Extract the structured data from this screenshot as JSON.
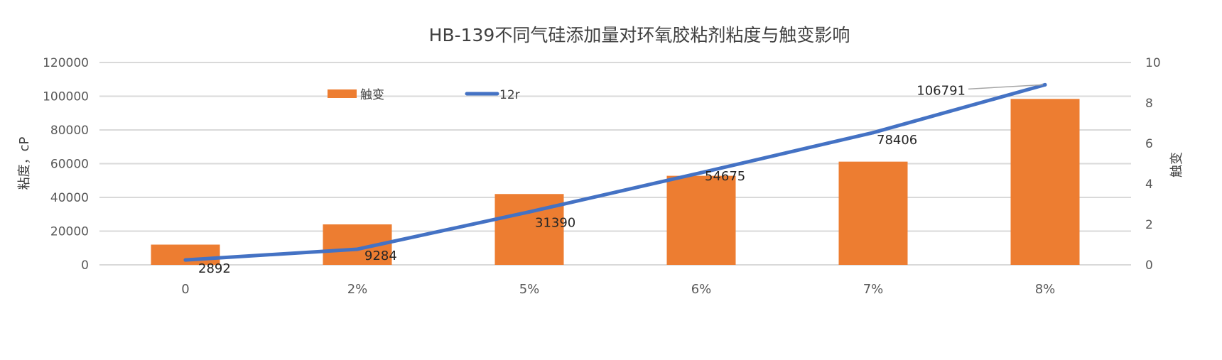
{
  "chart_data": {
    "type": "bar+line",
    "title": "HB-139不同气硅添加量对环氧胶粘剂粘度与触变影响",
    "categories": [
      "0",
      "2%",
      "5%",
      "6%",
      "7%",
      "8%"
    ],
    "y_left": {
      "label": "粘度，cP",
      "lim": [
        0,
        120000
      ],
      "ticks": [
        0,
        20000,
        40000,
        60000,
        80000,
        100000,
        120000
      ]
    },
    "y_right": {
      "label": "触变",
      "lim": [
        0,
        10
      ],
      "ticks": [
        0,
        2,
        4,
        6,
        8,
        10
      ]
    },
    "grid": true,
    "legend": "top-center",
    "series": [
      {
        "name": "触变",
        "type": "bar",
        "axis": "right",
        "color": "#ED7D31",
        "values": [
          1.0,
          2.0,
          3.5,
          4.4,
          5.1,
          8.2
        ]
      },
      {
        "name": "12r",
        "type": "line",
        "axis": "left",
        "color": "#4472C4",
        "values": [
          2892,
          9284,
          31390,
          54675,
          78406,
          106791
        ],
        "data_labels": [
          "2892",
          "9284",
          "31390",
          "54675",
          "78406",
          "106791"
        ]
      }
    ]
  }
}
